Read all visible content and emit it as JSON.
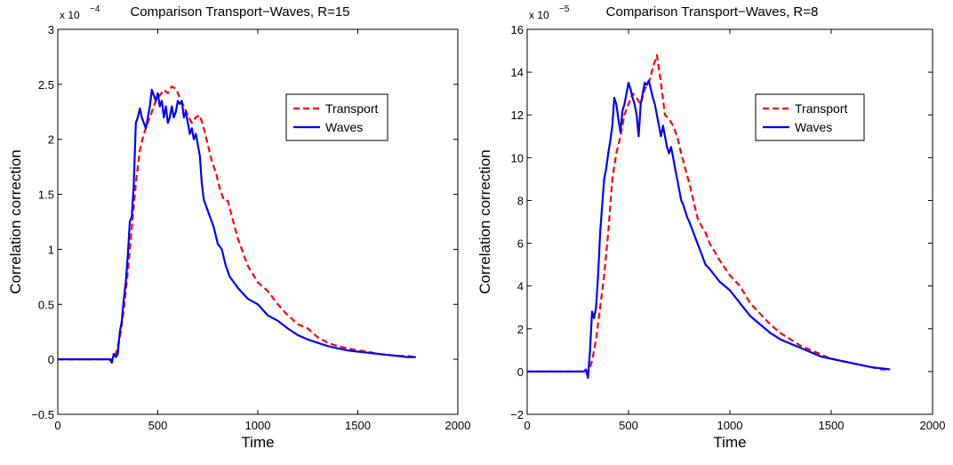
{
  "chart_data": [
    {
      "type": "line",
      "title": "Comparison Transport−Waves, R=15",
      "xlabel": "Time",
      "ylabel": "Correlation correction",
      "scale_base": "x 10",
      "scale_exp": "−4",
      "xlim": [
        0,
        2000
      ],
      "ylim": [
        -0.5,
        3
      ],
      "xticks": [
        0,
        500,
        1000,
        1500,
        2000
      ],
      "xtick_labels": [
        "0",
        "500",
        "1000",
        "1500",
        "2000"
      ],
      "yticks": [
        -0.5,
        0,
        0.5,
        1,
        1.5,
        2,
        2.5,
        3
      ],
      "ytick_labels": [
        "−0.5",
        "0",
        "0.5",
        "1",
        "1.5",
        "2",
        "2.5",
        "3"
      ],
      "grid": false,
      "legend_position": "upper-right",
      "series": [
        {
          "name": "Transport",
          "color": "#ff0000",
          "style": "dashed",
          "x": [
            0,
            270,
            290,
            310,
            330,
            350,
            370,
            390,
            410,
            430,
            450,
            470,
            490,
            510,
            530,
            550,
            570,
            590,
            610,
            630,
            650,
            670,
            690,
            710,
            730,
            750,
            770,
            790,
            810,
            830,
            850,
            870,
            900,
            950,
            1000,
            1050,
            1100,
            1150,
            1200,
            1250,
            1300,
            1350,
            1400,
            1450,
            1500,
            1550,
            1600,
            1650,
            1700,
            1750,
            1790
          ],
          "y": [
            0,
            0,
            0.05,
            0.2,
            0.45,
            0.8,
            1.2,
            1.6,
            1.9,
            2.05,
            2.15,
            2.25,
            2.35,
            2.4,
            2.45,
            2.42,
            2.48,
            2.46,
            2.38,
            2.3,
            2.22,
            2.15,
            2.2,
            2.22,
            2.1,
            1.95,
            1.8,
            1.7,
            1.55,
            1.45,
            1.44,
            1.3,
            1.1,
            0.85,
            0.7,
            0.62,
            0.5,
            0.4,
            0.32,
            0.28,
            0.2,
            0.15,
            0.12,
            0.1,
            0.08,
            0.07,
            0.05,
            0.04,
            0.03,
            0.03,
            0.02
          ]
        },
        {
          "name": "Waves",
          "color": "#0000ff",
          "style": "solid",
          "x": [
            0,
            260,
            270,
            280,
            290,
            300,
            310,
            320,
            330,
            340,
            350,
            360,
            370,
            380,
            390,
            400,
            410,
            420,
            430,
            440,
            450,
            460,
            470,
            480,
            490,
            500,
            510,
            520,
            530,
            540,
            550,
            560,
            570,
            580,
            590,
            600,
            610,
            620,
            630,
            640,
            650,
            660,
            670,
            680,
            690,
            700,
            710,
            720,
            730,
            740,
            760,
            780,
            800,
            820,
            840,
            860,
            880,
            900,
            950,
            1000,
            1050,
            1100,
            1150,
            1200,
            1250,
            1300,
            1350,
            1400,
            1450,
            1500,
            1550,
            1600,
            1650,
            1700,
            1750,
            1790
          ],
          "y": [
            0,
            0,
            -0.03,
            0.05,
            0.02,
            0.05,
            0.25,
            0.35,
            0.55,
            0.7,
            0.95,
            1.25,
            1.3,
            1.6,
            2.15,
            2.2,
            2.28,
            2.2,
            2.15,
            2.1,
            2.2,
            2.3,
            2.45,
            2.4,
            2.35,
            2.42,
            2.3,
            2.35,
            2.2,
            2.3,
            2.15,
            2.2,
            2.3,
            2.2,
            2.25,
            2.35,
            2.32,
            2.35,
            2.2,
            2.25,
            2.15,
            2.05,
            2.1,
            2.0,
            2.05,
            1.95,
            1.85,
            1.6,
            1.45,
            1.4,
            1.3,
            1.2,
            1.05,
            1.0,
            0.85,
            0.75,
            0.7,
            0.65,
            0.55,
            0.5,
            0.4,
            0.35,
            0.28,
            0.22,
            0.18,
            0.15,
            0.12,
            0.1,
            0.08,
            0.07,
            0.06,
            0.05,
            0.04,
            0.03,
            0.02,
            0.02
          ]
        }
      ]
    },
    {
      "type": "line",
      "title": "Comparison Transport−Waves, R=8",
      "xlabel": "Time",
      "ylabel": "Correlation correction",
      "scale_base": "x 10",
      "scale_exp": "−5",
      "xlim": [
        0,
        2000
      ],
      "ylim": [
        -2,
        16
      ],
      "xticks": [
        0,
        500,
        1000,
        1500,
        2000
      ],
      "xtick_labels": [
        "0",
        "500",
        "1000",
        "1500",
        "2000"
      ],
      "yticks": [
        -2,
        0,
        2,
        4,
        6,
        8,
        10,
        12,
        14,
        16
      ],
      "ytick_labels": [
        "−2",
        "0",
        "2",
        "4",
        "6",
        "8",
        "10",
        "12",
        "14",
        "16"
      ],
      "grid": false,
      "legend_position": "upper-right",
      "series": [
        {
          "name": "Transport",
          "color": "#ff0000",
          "style": "dashed",
          "x": [
            0,
            280,
            300,
            320,
            340,
            360,
            380,
            400,
            420,
            440,
            460,
            480,
            500,
            520,
            540,
            560,
            580,
            600,
            620,
            640,
            660,
            680,
            700,
            720,
            740,
            760,
            780,
            800,
            820,
            840,
            860,
            880,
            900,
            950,
            1000,
            1050,
            1100,
            1150,
            1200,
            1250,
            1300,
            1350,
            1400,
            1450,
            1500,
            1550,
            1600,
            1650,
            1700,
            1750,
            1790
          ],
          "y": [
            0,
            0,
            -0.1,
            0.5,
            1.5,
            3.0,
            4.5,
            6.5,
            9.0,
            10.2,
            11.0,
            12.0,
            12.5,
            13.0,
            12.8,
            12.5,
            13.2,
            13.5,
            14.2,
            14.8,
            13.5,
            12.0,
            11.8,
            11.5,
            11.0,
            10.2,
            9.5,
            8.8,
            8.0,
            7.2,
            6.8,
            6.5,
            6.0,
            5.2,
            4.5,
            4.0,
            3.2,
            2.7,
            2.2,
            1.8,
            1.5,
            1.2,
            1.0,
            0.8,
            0.6,
            0.5,
            0.4,
            0.3,
            0.2,
            0.1,
            0.1
          ]
        },
        {
          "name": "Waves",
          "color": "#0000ff",
          "style": "solid",
          "x": [
            0,
            280,
            290,
            300,
            310,
            320,
            330,
            340,
            350,
            360,
            370,
            380,
            390,
            400,
            410,
            420,
            430,
            440,
            450,
            460,
            470,
            480,
            490,
            500,
            510,
            520,
            530,
            540,
            550,
            560,
            570,
            580,
            590,
            600,
            610,
            620,
            630,
            640,
            650,
            660,
            670,
            680,
            690,
            700,
            710,
            720,
            730,
            740,
            750,
            760,
            770,
            780,
            790,
            800,
            820,
            840,
            860,
            880,
            900,
            950,
            1000,
            1050,
            1100,
            1150,
            1200,
            1250,
            1300,
            1350,
            1400,
            1450,
            1500,
            1550,
            1600,
            1650,
            1700,
            1750,
            1790
          ],
          "y": [
            0,
            0,
            0.1,
            -0.3,
            1.0,
            2.8,
            2.5,
            3.0,
            4.5,
            6.5,
            7.8,
            9.0,
            9.5,
            10.2,
            10.8,
            11.5,
            12.8,
            12.5,
            11.8,
            11.2,
            12.2,
            12.5,
            13.0,
            13.5,
            13.2,
            12.8,
            12.5,
            12.0,
            11.0,
            12.5,
            13.0,
            13.5,
            13.4,
            13.6,
            13.2,
            12.8,
            12.5,
            12.0,
            11.5,
            11.0,
            11.5,
            11.0,
            10.5,
            10.2,
            10.5,
            10.0,
            9.5,
            9.0,
            8.5,
            8.0,
            7.8,
            7.5,
            7.2,
            7.0,
            6.5,
            6.0,
            5.5,
            5.0,
            4.8,
            4.2,
            3.8,
            3.2,
            2.6,
            2.2,
            1.8,
            1.5,
            1.3,
            1.1,
            0.9,
            0.7,
            0.6,
            0.5,
            0.4,
            0.3,
            0.2,
            0.15,
            0.1
          ]
        }
      ]
    }
  ]
}
